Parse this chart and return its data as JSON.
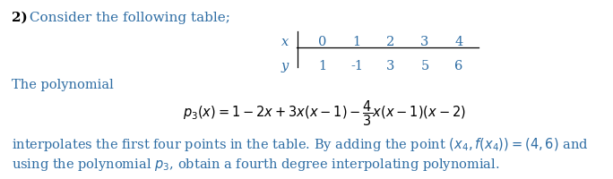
{
  "bg_color": "#ffffff",
  "black": "#000000",
  "teal": "#2e6da4",
  "figwidth": 6.84,
  "figheight": 2.0,
  "dpi": 100,
  "header_num": "2)",
  "header_text": " Consider the following table;",
  "table_x_label": "x",
  "table_y_label": "y",
  "table_x_vals": [
    "0",
    "1",
    "2",
    "3",
    "4"
  ],
  "table_y_vals": [
    "1",
    "-1",
    "3",
    "5",
    "6"
  ],
  "poly_intro": "The polynomial",
  "poly_eq": "$p_3(x) = 1 - 2x + 3x(x - 1) - \\dfrac{4}{3}x(x - 1)(x - 2)$",
  "bottom1": "interpolates the first four points in the table. By adding the point $(x_4, f(x_4)) = (4, 6)$ and",
  "bottom2": "using the polynomial $p_3$, obtain a fourth degree interpolating polynomial."
}
